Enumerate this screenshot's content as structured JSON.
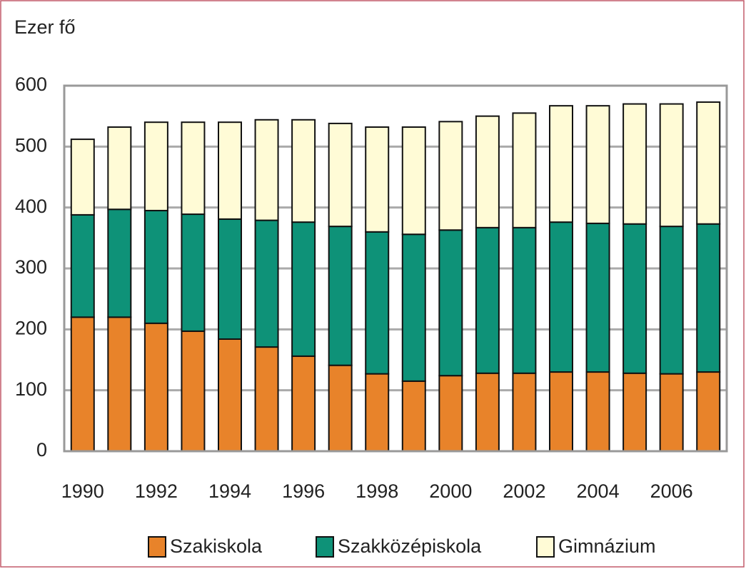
{
  "chart_data": {
    "type": "bar",
    "stacked": true,
    "y_label": "Ezer fő",
    "categories": [
      "1990",
      null,
      "1992",
      null,
      "1994",
      null,
      "1996",
      null,
      "1998",
      null,
      "2000",
      null,
      "2002",
      null,
      "2004",
      null,
      "2006",
      null
    ],
    "series": [
      {
        "name": "Szakiskola",
        "color": "#e8832a",
        "values": [
          220,
          220,
          210,
          197,
          184,
          171,
          156,
          141,
          127,
          115,
          124,
          128,
          128,
          130,
          130,
          128,
          127,
          130
        ]
      },
      {
        "name": "Szakközépiskola",
        "color": "#0e9278",
        "values": [
          168,
          177,
          185,
          192,
          197,
          208,
          220,
          228,
          233,
          241,
          239,
          239,
          239,
          246,
          244,
          245,
          242,
          243
        ]
      },
      {
        "name": "Gimnázium",
        "color": "#fffbd6",
        "values": [
          124,
          135,
          145,
          151,
          159,
          165,
          168,
          169,
          172,
          176,
          178,
          183,
          188,
          191,
          193,
          197,
          201,
          200
        ]
      }
    ],
    "ylim": [
      0,
      600
    ],
    "yticks": [
      0,
      100,
      200,
      300,
      400,
      500,
      600
    ],
    "grid": true,
    "legend": "bottom"
  }
}
